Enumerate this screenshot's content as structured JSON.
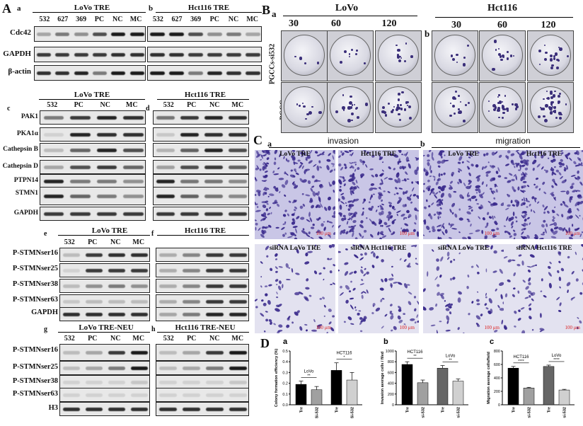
{
  "panelA": {
    "letter": "A",
    "a": {
      "sub": "a",
      "title": "LoVo TRE",
      "lanes": [
        "532",
        "627",
        "369",
        "PC",
        "NC",
        "MC"
      ]
    },
    "b": {
      "sub": "b",
      "title": "Hct116 TRE",
      "lanes": [
        "532",
        "627",
        "369",
        "PC",
        "NC",
        "MC"
      ]
    },
    "ab_rows": [
      "Cdc42",
      "GAPDH",
      "β-actin"
    ],
    "c": {
      "sub": "c",
      "title": "LoVo TRE",
      "lanes": [
        "532",
        "PC",
        "NC",
        "MC"
      ]
    },
    "d": {
      "sub": "d",
      "title": "Hct116 TRE",
      "lanes": [
        "532",
        "PC",
        "NC",
        "MC"
      ]
    },
    "cd_rows": [
      "PAK1",
      "PKA1α",
      "Cathepsin B",
      "Cathepsin D",
      "PTPN14",
      "STMN1",
      "GAPDH"
    ],
    "e": {
      "sub": "e",
      "title": "LoVo TRE",
      "lanes": [
        "532",
        "PC",
        "NC",
        "MC"
      ]
    },
    "f": {
      "sub": "f",
      "title": "Hct116 TRE"
    },
    "ef_rows": [
      "P-STMNser16",
      "P-STMNser25",
      "P-STMNser38",
      "P-STMNser63",
      "GAPDH"
    ],
    "g": {
      "sub": "g",
      "title": "LoVo TRE-NEU",
      "lanes": [
        "532",
        "PC",
        "NC",
        "MC"
      ]
    },
    "h": {
      "sub": "h",
      "title": "Hct116 TRE-NEU",
      "lanes": [
        "532",
        "PC",
        "NC",
        "MC"
      ]
    },
    "gh_rows": [
      "P-STMNser16",
      "P-STMNser25",
      "P-STMNser38",
      "P-STMNser63",
      "H3"
    ]
  },
  "panelB": {
    "letter": "B",
    "a": {
      "sub": "a",
      "title": "LoVo",
      "cols": [
        "30",
        "60",
        "120"
      ]
    },
    "b": {
      "sub": "b",
      "title": "Hct116",
      "cols": [
        "30",
        "60",
        "120"
      ]
    },
    "rows": [
      "PGCCs-si532",
      "PGCCs"
    ]
  },
  "panelC": {
    "letter": "C",
    "a": {
      "sub": "a",
      "title": "invasion",
      "top": [
        "LoVo TRE",
        "Hct116 TRE"
      ],
      "bottom": [
        "siRNA LoVo TRE",
        "siRNA Hct116 TRE"
      ]
    },
    "b": {
      "sub": "b",
      "title": "migration",
      "top": [
        "LoVo TRE",
        "Hct116 TRE"
      ],
      "bottom": [
        "siRNA LoVo TRE",
        "siRNA Hct116 TRE"
      ]
    },
    "scale": "100 μm"
  },
  "panelD": {
    "letter": "D",
    "chart_data": [
      {
        "type": "bar",
        "sub": "a",
        "ylabel": "Colony formation efficiency (%)",
        "categories": [
          "Tre",
          "Si-532",
          "Tre",
          "Si-532"
        ],
        "groups": [
          "LoVo",
          "HCT116"
        ],
        "values": [
          0.19,
          0.14,
          0.32,
          0.23
        ],
        "errors": [
          0.03,
          0.03,
          0.07,
          0.07
        ],
        "colors": [
          "#000000",
          "#a0a0a0",
          "#000000",
          "#d0d0d0"
        ],
        "ylim": [
          0,
          0.5
        ],
        "yticks": [
          "0.0",
          "0.1",
          "0.2",
          "0.3",
          "0.4",
          "0.5"
        ],
        "sig": [
          "**",
          "*"
        ]
      },
      {
        "type": "bar",
        "sub": "b",
        "ylabel": "Invasion average cells / filed",
        "categories": [
          "Tre",
          "si-532",
          "Tre",
          "si-532"
        ],
        "groups": [
          "HCT116",
          "LoVo"
        ],
        "values": [
          750,
          410,
          680,
          440
        ],
        "errors": [
          50,
          50,
          50,
          40
        ],
        "colors": [
          "#000000",
          "#a0a0a0",
          "#666666",
          "#d0d0d0"
        ],
        "ylim": [
          0,
          1000
        ],
        "yticks": [
          "0",
          "200",
          "400",
          "600",
          "800",
          "1000"
        ],
        "sig": [
          "**",
          "**"
        ]
      },
      {
        "type": "bar",
        "sub": "c",
        "ylabel": "Migration average cells/field",
        "categories": [
          "Tre",
          "si-532",
          "Tre",
          "si-532"
        ],
        "groups": [
          "HCT116",
          "LoVo"
        ],
        "values": [
          545,
          250,
          570,
          220
        ],
        "errors": [
          25,
          10,
          20,
          10
        ],
        "colors": [
          "#000000",
          "#a0a0a0",
          "#666666",
          "#d0d0d0"
        ],
        "ylim": [
          0,
          800
        ],
        "yticks": [
          "0",
          "200",
          "400",
          "600",
          "800"
        ],
        "sig": [
          "****",
          "****"
        ]
      }
    ]
  }
}
